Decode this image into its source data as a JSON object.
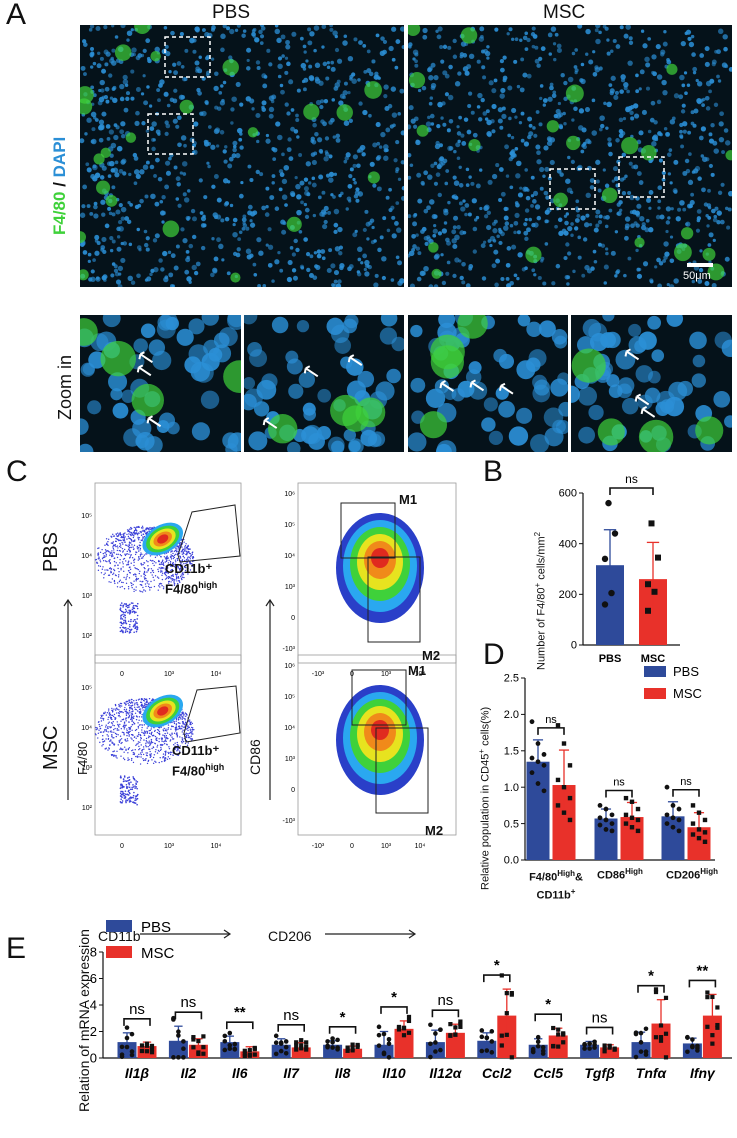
{
  "panel_a": {
    "letter": "A",
    "col_pbs": "PBS",
    "col_msc": "MSC",
    "stain_green": "F4/80",
    "stain_sep": " / ",
    "stain_blue": "DAPI",
    "scale_bar": "50μm",
    "zoom_label": "Zoom in",
    "green_color": "#3fd13a",
    "blue_color": "#2b8fd6"
  },
  "panel_b": {
    "letter": "B"
  },
  "panel_c": {
    "letter": "C",
    "row_pbs": "PBS",
    "row_msc": "MSC",
    "y_left": "F4/80",
    "x_left": "CD11b",
    "y_right": "CD86",
    "x_right": "CD206",
    "gate_line1": "CD11b⁺",
    "gate_line2_main": "F4/80",
    "gate_line2_sup": "high",
    "m1": "M1",
    "m2": "M2",
    "ticks_x": [
      "0",
      "10³",
      "10⁴"
    ],
    "ticks_y": [
      "10²",
      "10³",
      "10⁴",
      "10⁵"
    ],
    "ticks_x_right": [
      "-10³",
      "0",
      "10³",
      "10⁴"
    ],
    "ticks_y_right": [
      "-10³",
      "0",
      "10³",
      "10⁴",
      "10⁵",
      "10⁶"
    ]
  },
  "panel_d": {
    "letter": "D"
  },
  "panel_e": {
    "letter": "E"
  },
  "chart_data": [
    {
      "id": "B",
      "type": "bar",
      "categories": [
        "PBS",
        "MSC"
      ],
      "values": [
        315,
        260
      ],
      "errors": [
        140,
        145
      ],
      "points": [
        [
          560,
          440,
          340,
          205,
          160
        ],
        [
          480,
          345,
          240,
          210,
          135
        ]
      ],
      "ylabel_main": "Number of F4/80",
      "ylabel_sup": "+",
      "ylabel_tail": " cells/mm",
      "ylabel_sup2": "2",
      "ylim": [
        0,
        600
      ],
      "yticks": [
        "0",
        "200",
        "400",
        "600"
      ],
      "significance": [
        "ns"
      ],
      "colors": [
        "#2e4a9a",
        "#e8312a"
      ]
    },
    {
      "id": "D",
      "type": "bar",
      "ylabel_main": "Relative population in CD45",
      "ylabel_sup": "+",
      "ylabel_tail": " cells(%)",
      "ylim": [
        0,
        2.5
      ],
      "yticks": [
        "0.0",
        "0.5",
        "1.0",
        "1.5",
        "2.0",
        "2.5"
      ],
      "categories": [
        {
          "main": "F4/80",
          "sup": "High",
          "tail": "&",
          "line2": "CD11b",
          "line2_sup": "+"
        },
        {
          "main": "CD86",
          "sup": "High",
          "tail": "",
          "line2": "",
          "line2_sup": ""
        },
        {
          "main": "CD206",
          "sup": "High",
          "tail": "",
          "line2": "",
          "line2_sup": ""
        }
      ],
      "series": [
        {
          "name": "PBS",
          "color": "#2e4a9a",
          "values": [
            1.35,
            0.57,
            0.6
          ],
          "errors": [
            0.3,
            0.13,
            0.2
          ],
          "points": [
            [
              1.9,
              1.6,
              1.45,
              1.4,
              1.35,
              1.3,
              1.2,
              1.05,
              0.95
            ],
            [
              0.75,
              0.7,
              0.62,
              0.58,
              0.55,
              0.5,
              0.48,
              0.42,
              0.4
            ],
            [
              1.0,
              0.75,
              0.7,
              0.62,
              0.58,
              0.55,
              0.5,
              0.45,
              0.4
            ]
          ]
        },
        {
          "name": "MSC",
          "color": "#e8312a",
          "values": [
            1.03,
            0.59,
            0.45
          ],
          "errors": [
            0.48,
            0.2,
            0.2
          ],
          "points": [
            [
              1.85,
              1.6,
              1.3,
              1.1,
              1.0,
              0.85,
              0.75,
              0.65,
              0.55
            ],
            [
              0.85,
              0.8,
              0.7,
              0.62,
              0.58,
              0.55,
              0.5,
              0.45,
              0.4
            ],
            [
              0.75,
              0.65,
              0.55,
              0.5,
              0.42,
              0.38,
              0.35,
              0.3,
              0.25
            ]
          ]
        }
      ],
      "significance": [
        "ns",
        "ns",
        "ns"
      ]
    },
    {
      "id": "E",
      "type": "bar",
      "ylabel": "Relation of mRNA expression",
      "ylim": [
        0,
        8
      ],
      "yticks": [
        "0",
        "2",
        "4",
        "6",
        "8"
      ],
      "categories": [
        "Il1β",
        "Il2",
        "Il6",
        "Il7",
        "Il8",
        "Il10",
        "Il12α",
        "Ccl2",
        "Ccl5",
        "Tgfβ",
        "Tnfα",
        "Ifnγ"
      ],
      "series": [
        {
          "name": "PBS",
          "color": "#2e4a9a",
          "values": [
            1.2,
            1.3,
            1.2,
            1.0,
            1.0,
            1.0,
            1.2,
            1.3,
            1.0,
            1.0,
            1.2,
            1.1
          ],
          "errors": [
            0.7,
            1.1,
            0.45,
            0.45,
            0.3,
            1.0,
            0.9,
            0.6,
            0.45,
            0.25,
            0.75,
            0.4
          ]
        },
        {
          "name": "MSC",
          "color": "#e8312a",
          "values": [
            0.9,
            1.0,
            0.5,
            0.8,
            0.7,
            2.2,
            1.9,
            3.2,
            1.7,
            0.8,
            2.6,
            3.2
          ],
          "errors": [
            0.3,
            0.45,
            0.35,
            0.35,
            0.2,
            0.6,
            0.65,
            2.0,
            0.55,
            0.2,
            1.8,
            1.6
          ]
        }
      ],
      "significance": [
        "ns",
        "ns",
        "**",
        "ns",
        "*",
        "*",
        "ns",
        "*",
        "*",
        "ns",
        "*",
        "**"
      ]
    }
  ]
}
